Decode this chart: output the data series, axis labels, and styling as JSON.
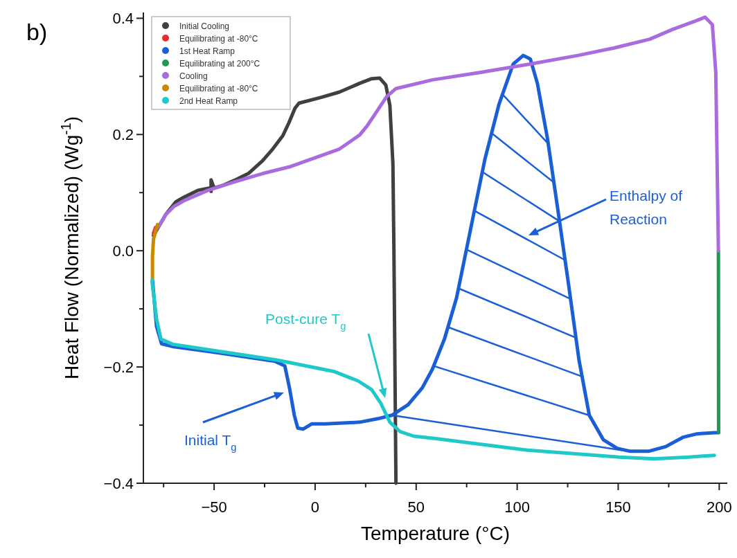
{
  "chart_data": {
    "type": "line",
    "title": "b)",
    "xlabel": "Temperature (°C)",
    "ylabel": "Heat Flow (Normalized) (Wg$^{-1}$)",
    "xlim": [
      -85,
      204
    ],
    "ylim": [
      -0.4,
      0.41
    ],
    "xticks": [
      {
        "value": -75,
        "label": null
      },
      -50,
      {
        "value": -25,
        "label": null
      },
      0,
      {
        "value": 25,
        "label": null
      },
      50,
      {
        "value": 75,
        "label": null
      },
      100,
      {
        "value": 125,
        "label": null
      },
      150,
      {
        "value": 175,
        "label": null
      },
      200
    ],
    "yticks": [
      -0.4,
      {
        "value": -0.3,
        "label": null
      },
      -0.2,
      {
        "value": -0.1,
        "label": null
      },
      {
        "value": 0,
        "label": "0.0"
      },
      {
        "value": 0.1,
        "label": null
      },
      0.2,
      {
        "value": 0.3,
        "label": null
      },
      0.4
    ],
    "grid": false,
    "legend": "top left",
    "line_style": "solid",
    "annotations": [
      "Enthalpy of Reaction",
      "Post-cure T$_{g}$",
      "Initial T$_{g}$"
    ],
    "series": [
      {
        "name": "Initial Cooling",
        "color": "#404040",
        "x": [
          40,
          39.5,
          39,
          38.5,
          37,
          35,
          32,
          28,
          22,
          12,
          3,
          -8,
          -10,
          -13,
          -16,
          -21,
          -26,
          -33,
          -40,
          -46,
          -50,
          -51.5,
          -51.5,
          -52,
          -58,
          -65,
          -69,
          -74,
          -78,
          -80
        ],
        "values": [
          -0.4,
          -0.2,
          0,
          0.15,
          0.25,
          0.285,
          0.297,
          0.296,
          0.288,
          0.273,
          0.264,
          0.254,
          0.245,
          0.22,
          0.198,
          0.175,
          0.155,
          0.133,
          0.121,
          0.112,
          0.108,
          0.122,
          0.102,
          0.108,
          0.104,
          0.092,
          0.084,
          0.062,
          0.038,
          0.026
        ]
      },
      {
        "name": "Equilibrating at -80°C",
        "color": "#ee2a2a",
        "x": [
          -79,
          -80
        ],
        "values": [
          0.04,
          0.03
        ]
      },
      {
        "name": "1st Heat Ramp",
        "color": "#1a5fd6",
        "x": [
          -80.5,
          -78.5,
          -76,
          -70,
          -47,
          -20,
          -15,
          -12.7,
          -10.3,
          -8.6,
          -6,
          -1.7,
          5,
          22,
          31,
          38,
          46,
          53,
          58,
          64,
          70,
          77,
          84,
          91,
          98,
          103,
          106.5,
          110,
          115,
          120,
          125.4,
          130.6,
          135.7,
          142.6,
          149.5,
          156,
          165,
          173.5,
          182,
          189,
          197.6,
          199.7
        ],
        "values": [
          -0.05,
          -0.13,
          -0.16,
          -0.165,
          -0.176,
          -0.19,
          -0.198,
          -0.236,
          -0.283,
          -0.305,
          -0.307,
          -0.298,
          -0.298,
          -0.295,
          -0.289,
          -0.283,
          -0.265,
          -0.236,
          -0.204,
          -0.152,
          -0.081,
          0.038,
          0.157,
          0.252,
          0.321,
          0.336,
          0.33,
          0.288,
          0.193,
          0.074,
          -0.057,
          -0.188,
          -0.283,
          -0.325,
          -0.34,
          -0.345,
          -0.345,
          -0.337,
          -0.321,
          -0.315,
          -0.313,
          -0.313
        ]
      },
      {
        "name": "Equilibrating at 200°C",
        "color": "#1e9a50",
        "x": [
          199.7,
          199.6
        ],
        "values": [
          -0.313,
          0.0
        ]
      },
      {
        "name": "Cooling",
        "color": "#a96bdd",
        "x": [
          199.6,
          198.3,
          196.6,
          193,
          188,
          177,
          165.6,
          148,
          130,
          106,
          82,
          58,
          40,
          35.4,
          25.8,
          22,
          12,
          0,
          -12,
          -25.8,
          -39.5,
          -53,
          -65,
          -70,
          -74,
          -77,
          -79
        ],
        "values": [
          0.0,
          0.307,
          0.389,
          0.402,
          0.395,
          0.381,
          0.364,
          0.349,
          0.336,
          0.321,
          0.307,
          0.294,
          0.279,
          0.265,
          0.215,
          0.199,
          0.175,
          0.16,
          0.145,
          0.133,
          0.119,
          0.104,
          0.086,
          0.076,
          0.062,
          0.044,
          0.035
        ]
      },
      {
        "name": "Equilibrating at -80°C",
        "color": "#c88a00",
        "x": [
          -78,
          -80,
          -80.5,
          -80.5
        ],
        "values": [
          0.045,
          0.02,
          -0.01,
          -0.05
        ]
      },
      {
        "color": "#1a5fd6",
        "x": [
          38,
          155
        ],
        "values": [
          -0.283,
          -0.345
        ]
      },
      {
        "name": "2nd Heat Ramp",
        "color": "#1fc9c9",
        "x": [
          -80.5,
          -80.7,
          -78.5,
          -76.3,
          -70.4,
          -47.4,
          -19,
          9.6,
          21.3,
          28,
          32.6,
          37,
          42,
          48.8,
          59,
          105,
          150.5,
          167.7,
          185,
          197.6
        ],
        "values": [
          -0.05,
          -0.054,
          -0.117,
          -0.152,
          -0.161,
          -0.173,
          -0.188,
          -0.208,
          -0.224,
          -0.239,
          -0.263,
          -0.295,
          -0.311,
          -0.319,
          -0.323,
          -0.343,
          -0.355,
          -0.358,
          -0.355,
          -0.352
        ]
      }
    ]
  }
}
